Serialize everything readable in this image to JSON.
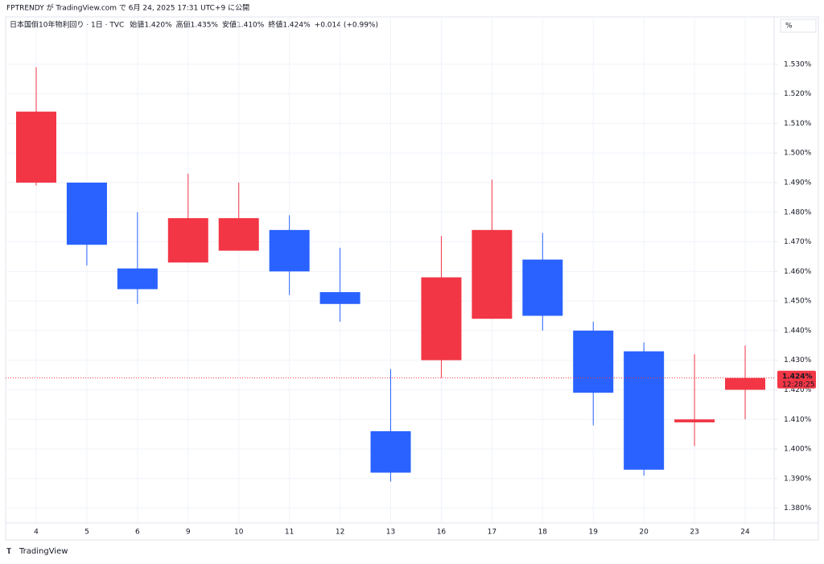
{
  "published": "FPTRENDY が TradingView.com で 6月 24, 2025 17:31 UTC+9 に公開",
  "header": {
    "symbol": "日本国債10年物利回り · 1日 · TVC",
    "labels": [
      "始値",
      "高値",
      "安値",
      "終値"
    ],
    "value_labels": [
      "1.420%",
      "1.435%",
      "1.410%",
      "1.424%"
    ],
    "change": "+0.014 (+0.99%)"
  },
  "unit": "%",
  "footer": "TradingView",
  "chart_data": {
    "type": "candlestick",
    "categories": [
      "4",
      "5",
      "6",
      "9",
      "10",
      "11",
      "12",
      "13",
      "16",
      "17",
      "18",
      "19",
      "20",
      "23",
      "24"
    ],
    "open": [
      1.49,
      1.49,
      1.461,
      1.463,
      1.467,
      1.474,
      1.453,
      1.406,
      1.43,
      1.444,
      1.464,
      1.44,
      1.433,
      1.409,
      1.42
    ],
    "high": [
      1.529,
      1.49,
      1.48,
      1.493,
      1.49,
      1.479,
      1.468,
      1.427,
      1.472,
      1.491,
      1.473,
      1.443,
      1.436,
      1.432,
      1.435
    ],
    "low": [
      1.489,
      1.462,
      1.449,
      1.463,
      1.467,
      1.452,
      1.443,
      1.389,
      1.424,
      1.444,
      1.44,
      1.408,
      1.391,
      1.401,
      1.41
    ],
    "close": [
      1.514,
      1.469,
      1.454,
      1.478,
      1.478,
      1.46,
      1.449,
      1.392,
      1.458,
      1.474,
      1.445,
      1.419,
      1.393,
      1.41,
      1.424
    ],
    "up_color": "#f23645",
    "down_color": "#2962ff",
    "ylim": [
      1.375,
      1.546
    ],
    "yticks": [
      {
        "value": 1.38,
        "label": "1.380%"
      },
      {
        "value": 1.39,
        "label": "1.390%"
      },
      {
        "value": 1.4,
        "label": "1.400%"
      },
      {
        "value": 1.41,
        "label": "1.410%"
      },
      {
        "value": 1.42,
        "label": "1.420%"
      },
      {
        "value": 1.43,
        "label": "1.430%"
      },
      {
        "value": 1.44,
        "label": "1.440%"
      },
      {
        "value": 1.45,
        "label": "1.450%"
      },
      {
        "value": 1.46,
        "label": "1.460%"
      },
      {
        "value": 1.47,
        "label": "1.470%"
      },
      {
        "value": 1.48,
        "label": "1.480%"
      },
      {
        "value": 1.49,
        "label": "1.490%"
      },
      {
        "value": 1.5,
        "label": "1.500%"
      },
      {
        "value": 1.51,
        "label": "1.510%"
      },
      {
        "value": 1.52,
        "label": "1.520%"
      },
      {
        "value": 1.53,
        "label": "1.530%"
      }
    ],
    "last_price": {
      "value": 1.424,
      "label": "1.424%"
    },
    "countdown": "12:28:25",
    "grid": true
  }
}
